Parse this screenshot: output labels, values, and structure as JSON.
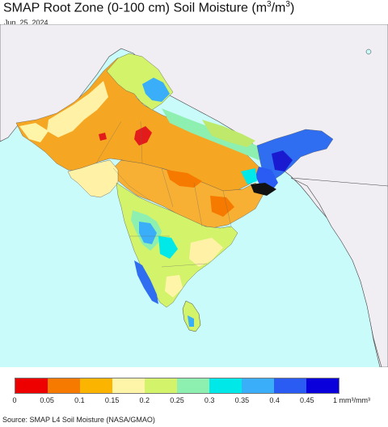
{
  "title": {
    "main": "SMAP Root Zone (0-100 cm) Soil Moisture (m",
    "sup1": "3",
    "mid": "/m",
    "sup2": "3",
    "end": ")"
  },
  "date": "Jun. 25, 2024",
  "legend": {
    "colors": [
      "#ee0000",
      "#f77a00",
      "#fbb400",
      "#fff5a8",
      "#d2f36a",
      "#8ef0b0",
      "#00e8e8",
      "#3aaef8",
      "#2a5cf4",
      "#0a00dc"
    ],
    "ticks": [
      "0",
      "0.05",
      "0.1",
      "0.15",
      "0.2",
      "0.25",
      "0.3",
      "0.35",
      "0.4",
      "0.45"
    ],
    "unit": "1 mm³/mm³"
  },
  "source": "Source: SMAP L4 Soil Moisture (NASA/GMAO)",
  "map_colors": {
    "sea": "#c9fbfb",
    "land_outside": "#f0eef2",
    "border": "#333333",
    "dry_orange": "#f5a623",
    "light_yellow": "#fff2a6",
    "green": "#bfe96a",
    "cyan": "#62dde0",
    "blue": "#2f6ef0",
    "dark_blue": "#1a1ad0",
    "red": "#e41b1b"
  }
}
